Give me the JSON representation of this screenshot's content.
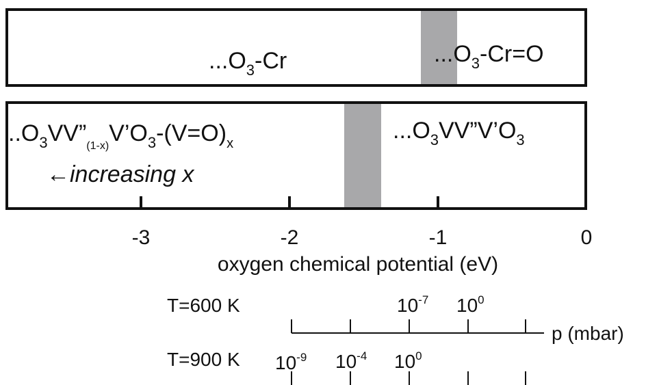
{
  "cr_panel": {
    "label_left": {
      "base": "...O",
      "sub": "3",
      "tail": "-Cr"
    },
    "label_right": {
      "base": "...O",
      "sub": "3",
      "tail": "-Cr=O"
    },
    "band_color": "#a8a8aa"
  },
  "v_panel": {
    "label_left": {
      "p1": "..O",
      "s1": "3",
      "p2": "VV”",
      "s2": "(1-x)",
      "p3": "V’O",
      "s3": "3",
      "p4": "-(V=O)",
      "s4": "x"
    },
    "label_right": {
      "p1": "...O",
      "s1": "3",
      "p2": "VV”V’O",
      "s2": "3"
    },
    "trend_arrow": "←",
    "trend_text": "increasing x",
    "band_color": "#a8a8aa"
  },
  "axis": {
    "title": "oxygen chemical potential (eV)",
    "tick_labels": [
      "-3",
      "-2",
      "-1",
      "0"
    ]
  },
  "pressure": {
    "unit_label": "p (mbar)",
    "row_600": {
      "temp_label": "T=600 K",
      "labels": [
        {
          "base": "10",
          "exp": "-7"
        },
        {
          "base": "10",
          "exp": "0"
        }
      ]
    },
    "row_900": {
      "temp_label": "T=900 K",
      "labels": [
        {
          "base": "10",
          "exp": "-9"
        },
        {
          "base": "10",
          "exp": "-4"
        },
        {
          "base": "10",
          "exp": "0"
        }
      ]
    }
  }
}
